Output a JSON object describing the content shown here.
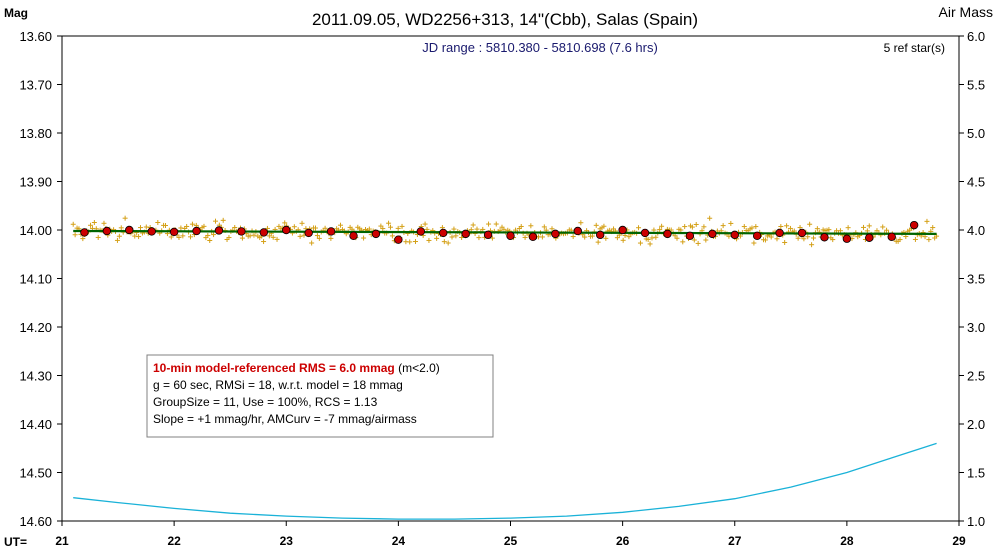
{
  "chart_data": {
    "type": "scatter",
    "title": "2011.09.05, WD2256+313, 14\"(Cbb), Salas (Spain)",
    "ylabel_left": "Mag",
    "ylabel_right": "Air Mass",
    "xlabel": "UT=",
    "jd_range": "JD range : 5810.380 - 5810.698 (7.6 hrs)",
    "ref_stars": "5 ref star(s)",
    "xlim": [
      21,
      29
    ],
    "x_ticks": [
      21,
      22,
      23,
      24,
      25,
      26,
      27,
      28,
      29
    ],
    "ylim_mag": [
      13.6,
      14.6
    ],
    "y_ticks_mag": [
      "13.60",
      "13.70",
      "13.80",
      "13.90",
      "14.00",
      "14.10",
      "14.20",
      "14.30",
      "14.40",
      "14.50",
      "14.60"
    ],
    "ylim_airmass": [
      1.0,
      6.0
    ],
    "y_ticks_airmass": [
      "6.0",
      "5.5",
      "5.0",
      "4.5",
      "4.0",
      "3.5",
      "3.0",
      "2.5",
      "2.0",
      "1.5",
      "1.0"
    ],
    "info_box": {
      "line1_bold": "10-min model-referenced RMS = 6.0 mmag",
      "line1_rest": " (m<2.0)",
      "line2": "g = 60 sec, RMSi = 18, w.r.t. model = 18 mmag",
      "line3": "GroupSize = 11, Use = 100%, RCS = 1.13",
      "line4": "Slope = +1 mmag/hr, AMCurv = -7 mmag/airmass"
    },
    "series": [
      {
        "name": "",
        "kind": "binned",
        "x": [
          21.2,
          21.4,
          21.6,
          21.8,
          22.0,
          22.2,
          22.4,
          22.6,
          22.8,
          23.0,
          23.2,
          23.4,
          23.6,
          23.8,
          24.0,
          24.2,
          24.4,
          24.6,
          24.8,
          25.0,
          25.2,
          25.4,
          25.6,
          25.8,
          26.0,
          26.2,
          26.4,
          26.6,
          26.8,
          27.0,
          27.2,
          27.4,
          27.6,
          27.8,
          28.0,
          28.2,
          28.4,
          28.6
        ],
        "y": [
          14.005,
          14.002,
          14.0,
          14.003,
          14.004,
          14.002,
          14.001,
          14.003,
          14.005,
          14.0,
          14.006,
          14.003,
          14.012,
          14.008,
          14.02,
          14.003,
          14.006,
          14.008,
          14.01,
          14.012,
          14.014,
          14.008,
          14.002,
          14.01,
          14.0,
          14.006,
          14.008,
          14.012,
          14.008,
          14.01,
          14.012,
          14.006,
          14.006,
          14.015,
          14.018,
          14.016,
          14.014,
          13.99
        ]
      },
      {
        "name": "",
        "kind": "model",
        "x": [
          21.1,
          28.8
        ],
        "y": [
          14.002,
          14.008
        ]
      },
      {
        "name": "",
        "kind": "airmass",
        "x": [
          21.1,
          21.5,
          22.0,
          22.5,
          23.0,
          23.5,
          24.0,
          24.5,
          25.0,
          25.5,
          26.0,
          26.5,
          27.0,
          27.5,
          28.0,
          28.4,
          28.8
        ],
        "y": [
          1.24,
          1.19,
          1.13,
          1.08,
          1.05,
          1.03,
          1.02,
          1.02,
          1.03,
          1.05,
          1.09,
          1.15,
          1.23,
          1.35,
          1.5,
          1.65,
          1.8
        ]
      }
    ],
    "individual_points_count": 450,
    "individual_points_scatter_mmag": 18
  },
  "colors": {
    "title": "#000000",
    "jd_text": "#1a1a6e",
    "points": "#d4a017",
    "binned_fill": "#cc0000",
    "model_line": "#006400",
    "airmass_line": "#1ab2d8",
    "rms_text": "#cc0000"
  }
}
